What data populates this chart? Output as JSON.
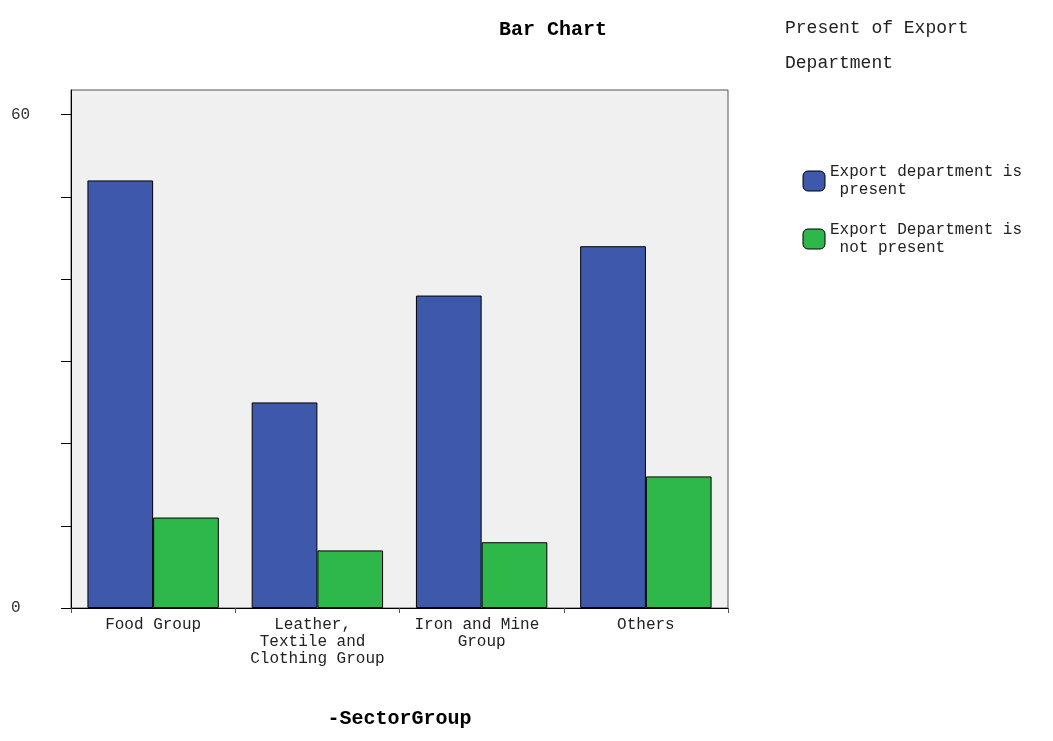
{
  "chart_data": {
    "type": "bar",
    "title": "Bar Chart",
    "xlabel": "-SectorGroup",
    "legend_title": "Present of Export Department",
    "categories": [
      "Food Group",
      "Leather, Textile and Clothing Group",
      "Iron and Mine Group",
      "Others"
    ],
    "series": [
      {
        "name": "Export department is present",
        "color": "#3e58ac",
        "values": [
          52,
          25,
          38,
          44
        ]
      },
      {
        "name": "Export Department is not present",
        "color": "#2fb84a",
        "values": [
          11,
          7,
          8,
          16
        ]
      }
    ],
    "ylim": [
      0,
      63
    ],
    "yticks": [
      0,
      {
        "value": 10,
        "label": null
      },
      {
        "value": 20,
        "label": null
      },
      {
        "value": 30,
        "label": null
      },
      {
        "value": 40,
        "label": null
      },
      {
        "value": 50,
        "label": null
      },
      60
    ],
    "grid": false,
    "legend": "right"
  }
}
